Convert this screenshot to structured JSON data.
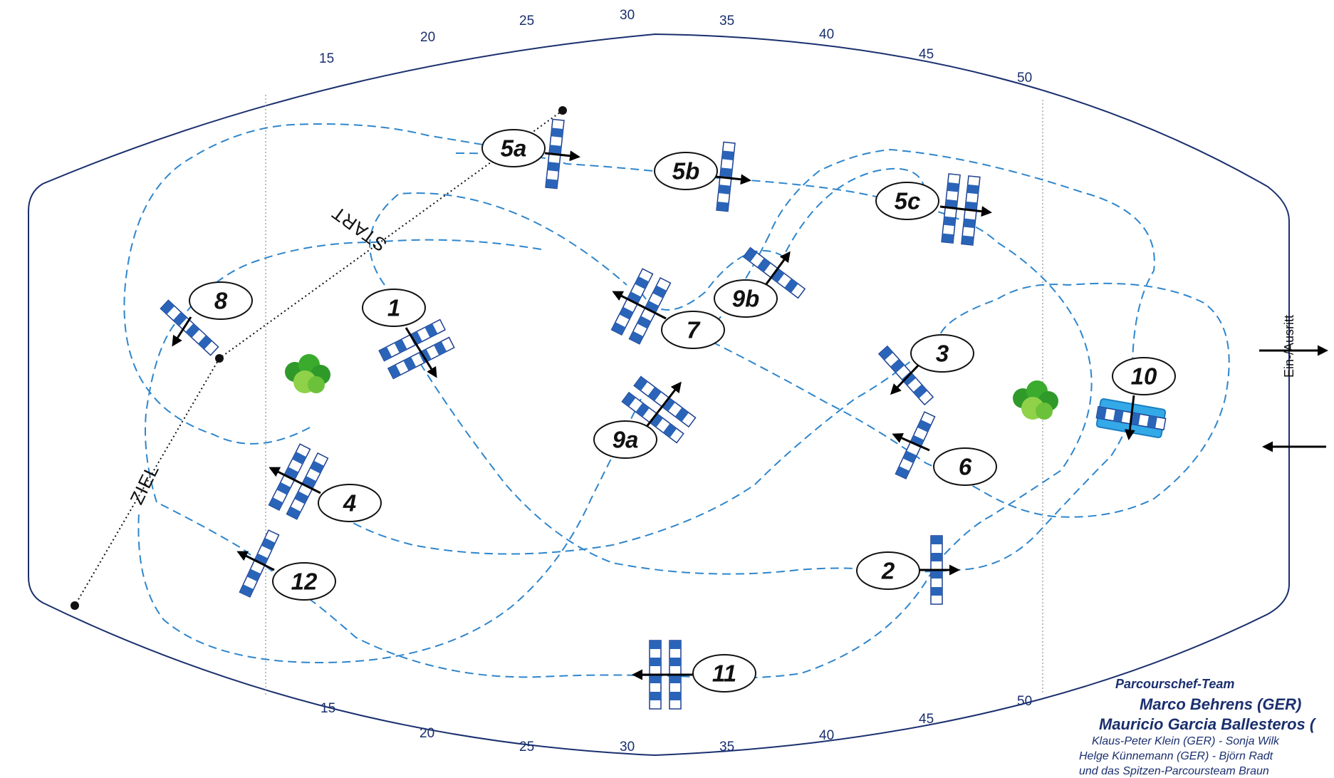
{
  "arena": {
    "top_marks": [
      "15",
      "20",
      "25",
      "30",
      "35",
      "40",
      "45",
      "50"
    ],
    "bottom_marks": [
      "15",
      "20",
      "25",
      "30",
      "35",
      "40",
      "45",
      "50"
    ]
  },
  "labels": {
    "start": "START",
    "finish": "ZIEL",
    "entrance": "Ein-/Ausritt"
  },
  "obstacles": [
    "1",
    "2",
    "3",
    "4",
    "5a",
    "5b",
    "5c",
    "6",
    "7",
    "8",
    "9a",
    "9b",
    "10",
    "11",
    "12"
  ],
  "credits": {
    "title": "Parcourschef-Team",
    "chief": "Marco Behrens (GER)",
    "co_chief": "Mauricio Garcia Ballesteros (",
    "line1": "Klaus-Peter Klein (GER) - Sonja Wilk",
    "line2": "Helge Künnemann (GER) - Björn Radt",
    "line3": "und das Spitzen-Parcoursteam Braun"
  },
  "colors": {
    "pole_blue": "#2a64b8",
    "route": "#2f86cc",
    "outline": "#1a2f6e",
    "bush": "#5fb82b"
  }
}
